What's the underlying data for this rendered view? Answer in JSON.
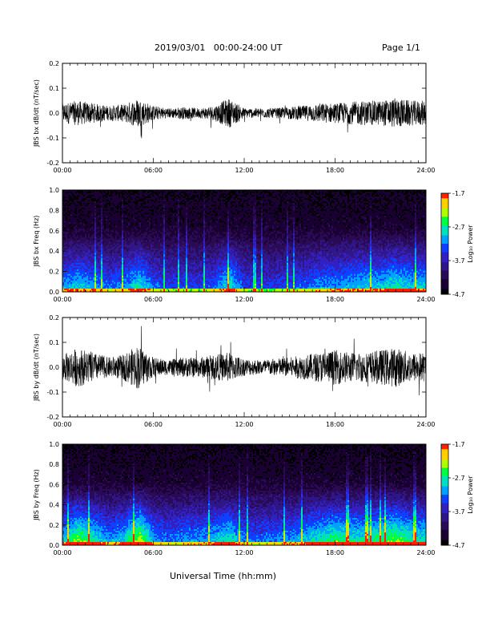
{
  "header": {
    "title": "2019/03/01   00:00-24:00 UT",
    "page": "Page 1/1"
  },
  "x_axis_title": "Universal Time (hh:mm)",
  "time_ticks": [
    "00:00",
    "06:00",
    "12:00",
    "18:00",
    "24:00"
  ],
  "colors": {
    "trace": "#000000",
    "colormap": [
      "#000000",
      "#1a0033",
      "#2a0a55",
      "#2f1688",
      "#3220c0",
      "#1040ff",
      "#00a0ff",
      "#00e0c0",
      "#00ff40",
      "#b0ff00",
      "#ffd000",
      "#ff2000"
    ]
  },
  "chart_data": [
    {
      "type": "line",
      "ylabel": "JBS bx dB/dt (nT/sec)",
      "yticks": [
        "0.2",
        "0.1",
        "0.0",
        "-0.1",
        "-0.2"
      ],
      "ylim": [
        -0.2,
        0.2
      ],
      "xlim_hours": [
        0,
        24
      ],
      "envelope_amplitude_by_hour": [
        {
          "hour": 0,
          "amp": 0.04
        },
        {
          "hour": 1,
          "amp": 0.05
        },
        {
          "hour": 2,
          "amp": 0.04
        },
        {
          "hour": 3,
          "amp": 0.03
        },
        {
          "hour": 4,
          "amp": 0.035
        },
        {
          "hour": 5,
          "amp": 0.06
        },
        {
          "hour": 6,
          "amp": 0.03
        },
        {
          "hour": 7,
          "amp": 0.02
        },
        {
          "hour": 8,
          "amp": 0.025
        },
        {
          "hour": 9,
          "amp": 0.02
        },
        {
          "hour": 10,
          "amp": 0.03
        },
        {
          "hour": 11,
          "amp": 0.06
        },
        {
          "hour": 12,
          "amp": 0.02
        },
        {
          "hour": 13,
          "amp": 0.02
        },
        {
          "hour": 14,
          "amp": 0.02
        },
        {
          "hour": 15,
          "amp": 0.025
        },
        {
          "hour": 16,
          "amp": 0.03
        },
        {
          "hour": 17,
          "amp": 0.04
        },
        {
          "hour": 18,
          "amp": 0.04
        },
        {
          "hour": 19,
          "amp": 0.045
        },
        {
          "hour": 20,
          "amp": 0.05
        },
        {
          "hour": 21,
          "amp": 0.05
        },
        {
          "hour": 22,
          "amp": 0.06
        },
        {
          "hour": 23,
          "amp": 0.05
        },
        {
          "hour": 24,
          "amp": 0.05
        }
      ]
    },
    {
      "type": "heatmap",
      "ylabel": "JBS bx Freq (Hz)",
      "yticks": [
        "1.0",
        "0.8",
        "0.6",
        "0.4",
        "0.2",
        "0.0"
      ],
      "ylim": [
        0,
        1.0
      ],
      "colorbar_label": "Log₁₀ Power",
      "colorbar_ticks": [
        "-1.7",
        "-2.7",
        "-3.7",
        "-4.7"
      ],
      "color_range": [
        -4.7,
        -1.7
      ]
    },
    {
      "type": "line",
      "ylabel": "JBS by dB/dt (nT/sec)",
      "yticks": [
        "0.2",
        "0.1",
        "0.0",
        "-0.1",
        "-0.2"
      ],
      "ylim": [
        -0.2,
        0.2
      ],
      "xlim_hours": [
        0,
        24
      ],
      "envelope_amplitude_by_hour": [
        {
          "hour": 0,
          "amp": 0.05
        },
        {
          "hour": 1,
          "amp": 0.08
        },
        {
          "hour": 2,
          "amp": 0.06
        },
        {
          "hour": 3,
          "amp": 0.04
        },
        {
          "hour": 4,
          "amp": 0.05
        },
        {
          "hour": 5,
          "amp": 0.09
        },
        {
          "hour": 6,
          "amp": 0.04
        },
        {
          "hour": 7,
          "amp": 0.03
        },
        {
          "hour": 8,
          "amp": 0.04
        },
        {
          "hour": 9,
          "amp": 0.04
        },
        {
          "hour": 10,
          "amp": 0.05
        },
        {
          "hour": 11,
          "amp": 0.06
        },
        {
          "hour": 12,
          "amp": 0.035
        },
        {
          "hour": 13,
          "amp": 0.03
        },
        {
          "hour": 14,
          "amp": 0.035
        },
        {
          "hour": 15,
          "amp": 0.04
        },
        {
          "hour": 16,
          "amp": 0.05
        },
        {
          "hour": 17,
          "amp": 0.06
        },
        {
          "hour": 18,
          "amp": 0.07
        },
        {
          "hour": 19,
          "amp": 0.06
        },
        {
          "hour": 20,
          "amp": 0.06
        },
        {
          "hour": 21,
          "amp": 0.07
        },
        {
          "hour": 22,
          "amp": 0.08
        },
        {
          "hour": 23,
          "amp": 0.06
        },
        {
          "hour": 24,
          "amp": 0.06
        }
      ]
    },
    {
      "type": "heatmap",
      "ylabel": "JBS by Freq (Hz)",
      "yticks": [
        "1.0",
        "0.8",
        "0.6",
        "0.4",
        "0.2",
        "0.0"
      ],
      "ylim": [
        0,
        1.0
      ],
      "colorbar_label": "Log₁₀ Power",
      "colorbar_ticks": [
        "-1.7",
        "-2.7",
        "-3.7",
        "-4.7"
      ],
      "color_range": [
        -4.7,
        -1.7
      ]
    }
  ]
}
